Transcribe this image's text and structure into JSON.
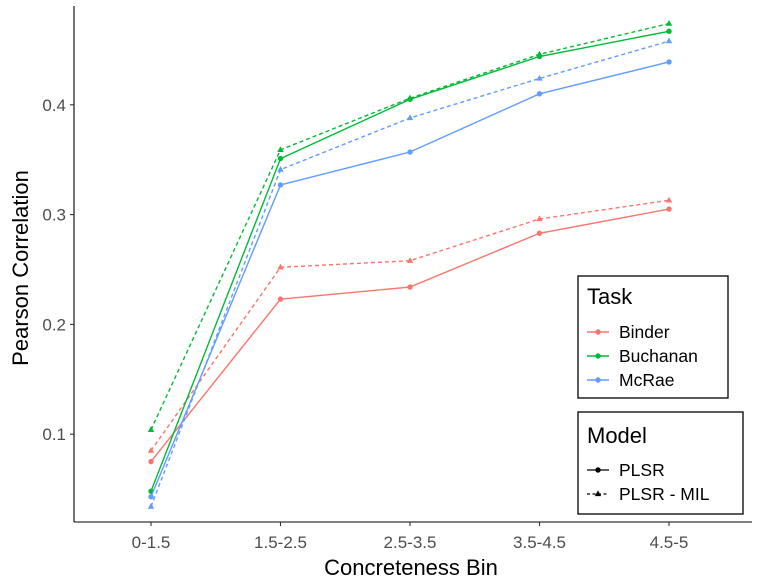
{
  "chart_data": {
    "type": "line",
    "xlabel": "Concreteness Bin",
    "ylabel": "Pearson Correlation",
    "categories": [
      "0-1.5",
      "1.5-2.5",
      "2.5-3.5",
      "3.5-4.5",
      "4.5-5"
    ],
    "ylim": [
      0.02,
      0.49
    ],
    "yticks": [
      0.1,
      0.2,
      0.3,
      0.4
    ],
    "ytick_labels": [
      "0.1",
      "0.2",
      "0.3",
      "0.4"
    ],
    "grid": false,
    "legend_placement": "bottom-right",
    "legends": {
      "task": {
        "title": "Task",
        "items": [
          {
            "name": "Binder",
            "color": "#F8766D"
          },
          {
            "name": "Buchanan",
            "color": "#00BA38"
          },
          {
            "name": "McRae",
            "color": "#619CFF"
          }
        ]
      },
      "model": {
        "title": "Model",
        "items": [
          {
            "name": "PLSR",
            "linestyle": "solid",
            "marker": "circle"
          },
          {
            "name": "PLSR - MIL",
            "linestyle": "dashed",
            "marker": "triangle"
          }
        ]
      }
    },
    "series": [
      {
        "task": "Binder",
        "model": "PLSR",
        "color": "#F8766D",
        "values": [
          0.075,
          0.223,
          0.234,
          0.283,
          0.305
        ]
      },
      {
        "task": "Binder",
        "model": "PLSR - MIL",
        "color": "#F8766D",
        "values": [
          0.085,
          0.252,
          0.258,
          0.296,
          0.313
        ]
      },
      {
        "task": "Buchanan",
        "model": "PLSR",
        "color": "#00BA38",
        "values": [
          0.048,
          0.351,
          0.405,
          0.444,
          0.467
        ]
      },
      {
        "task": "Buchanan",
        "model": "PLSR - MIL",
        "color": "#00BA38",
        "values": [
          0.104,
          0.359,
          0.406,
          0.446,
          0.474
        ]
      },
      {
        "task": "McRae",
        "model": "PLSR",
        "color": "#619CFF",
        "values": [
          0.043,
          0.327,
          0.357,
          0.41,
          0.439
        ]
      },
      {
        "task": "McRae",
        "model": "PLSR - MIL",
        "color": "#619CFF",
        "values": [
          0.034,
          0.341,
          0.388,
          0.424,
          0.458
        ]
      }
    ]
  }
}
